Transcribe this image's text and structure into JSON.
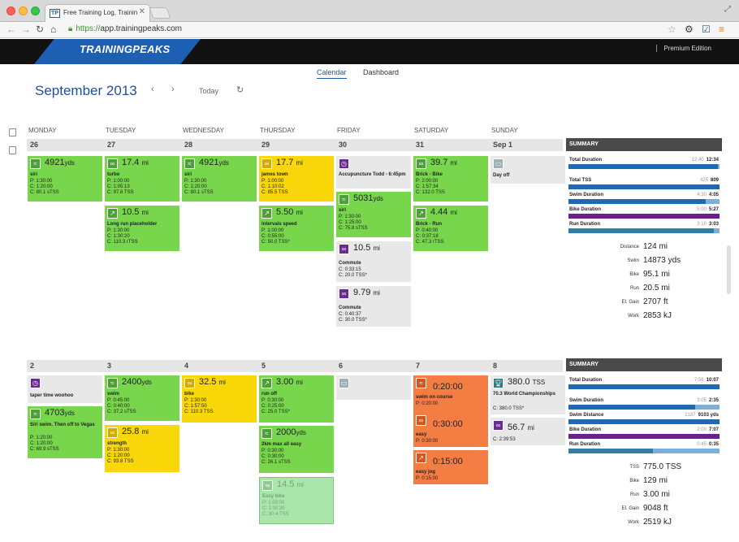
{
  "browser": {
    "tab_title": "Free Training Log, Trainin",
    "tab_favicon": "TP",
    "url_scheme": "https://",
    "url_host": "app.trainingpeaks.com"
  },
  "header": {
    "logo": "TRAININGPEAKS",
    "edition": "Premium Edition",
    "tabs": [
      "Calendar",
      "Dashboard"
    ]
  },
  "calendar": {
    "month": "September",
    "year": "2013",
    "prev": "‹",
    "next": "›",
    "today": "Today",
    "day_names": [
      "MONDAY",
      "TUESDAY",
      "WEDNESDAY",
      "THURSDAY",
      "FRIDAY",
      "SATURDAY",
      "SUNDAY"
    ]
  },
  "week1": {
    "dates": [
      "26",
      "27",
      "28",
      "29",
      "30",
      "31",
      "Sep 1"
    ],
    "summary": {
      "title": "SUMMARY",
      "bars": [
        {
          "label": "Total Duration",
          "planned": "12:40",
          "completed": "12:34",
          "fill": 0.99
        },
        {
          "label": "Total TSS",
          "planned": "425",
          "completed": "809",
          "fill": 1.0
        },
        {
          "label": "Swim Duration",
          "planned": "4:30",
          "completed": "4:05",
          "fill": 0.91
        },
        {
          "label": "Bike Duration",
          "planned": "5:00",
          "completed": "5:27",
          "fill": 1.0
        },
        {
          "label": "Run Duration",
          "planned": "3:10",
          "completed": "3:03",
          "fill": 0.96
        }
      ],
      "totals": [
        {
          "label": "Distance",
          "value": "124",
          "unit": "mi"
        },
        {
          "label": "Swim",
          "value": "14873",
          "unit": "yds"
        },
        {
          "label": "Bike",
          "value": "95.1",
          "unit": "mi"
        },
        {
          "label": "Run",
          "value": "20.5",
          "unit": "mi"
        },
        {
          "label": "El. Gain",
          "value": "2707",
          "unit": "ft"
        },
        {
          "label": "Work",
          "value": "2853",
          "unit": "kJ"
        }
      ]
    }
  },
  "week2": {
    "dates": [
      "2",
      "3",
      "4",
      "5",
      "6",
      "7",
      "8"
    ],
    "summary": {
      "title": "SUMMARY",
      "bars": [
        {
          "label": "Total Duration",
          "planned": "7:56",
          "completed": "10:07",
          "fill": 1.0
        },
        {
          "label": "Swim Duration",
          "planned": "3:05",
          "completed": "2:35",
          "fill": 0.84
        },
        {
          "label": "Swim Distance",
          "planned": "2187",
          "completed": "9103 yds",
          "fill": 1.0
        },
        {
          "label": "Bike Duration",
          "planned": "2:00",
          "completed": "7:07",
          "fill": 1.0
        },
        {
          "label": "Run Duration",
          "planned": "0:45",
          "completed": "0:35",
          "fill": 0.56
        }
      ],
      "totals": [
        {
          "label": "TSS",
          "value": "775.0",
          "unit": "TSS"
        },
        {
          "label": "Bike",
          "value": "129",
          "unit": "mi"
        },
        {
          "label": "Run",
          "value": "3.00",
          "unit": "mi"
        },
        {
          "label": "El. Gain",
          "value": "9048",
          "unit": "ft"
        },
        {
          "label": "Work",
          "value": "2519",
          "unit": "kJ"
        }
      ]
    }
  },
  "cards": {
    "w1mon": {
      "value": "4921",
      "unit": "yds",
      "title": "siri",
      "p": "P: 1:30:00",
      "c": "C: 1:20:00",
      "t": "C: 80.1 sTSS"
    },
    "w1tue1": {
      "value": "17.4",
      "unit": "mi",
      "title": "turbo",
      "p": "P: 1:00:00",
      "c": "C: 1:05:13",
      "t": "C: 97.8 TSS"
    },
    "w1tue2": {
      "value": "10.5",
      "unit": "mi",
      "title": "Long run placeholder",
      "p": "P: 1:30:00",
      "c": "C: 1:30:20",
      "t": "C: 110.3 rTSS"
    },
    "w1wed": {
      "value": "4921",
      "unit": "yds",
      "title": "siri",
      "p": "P: 1:30:00",
      "c": "C: 1:20:00",
      "t": "C: 80.1 sTSS"
    },
    "w1thu1": {
      "value": "17.7",
      "unit": "mi",
      "title": "james town",
      "p": "P: 1:00:00",
      "c": "C: 1:10:02",
      "t": "C: 85.5 TSS"
    },
    "w1thu2": {
      "value": "5.50",
      "unit": "mi",
      "title": "intervals speed",
      "p": "P: 1:00:00",
      "c": "C: 0:55:00",
      "t": "C: 50.0 TSS*"
    },
    "w1fri1": {
      "title": "Accupuncture Todd - 6:45pm"
    },
    "w1fri2": {
      "value": "5031",
      "unit": "yds",
      "title": "siri",
      "p": "P: 1:30:00",
      "c": "C: 1:25:00",
      "t": "C: 75.8 sTSS"
    },
    "w1fri3": {
      "value": "10.5",
      "unit": "mi",
      "title": "Commute",
      "c": "C: 0:33:15",
      "t": "C: 20.0 TSS*"
    },
    "w1fri4": {
      "value": "9.79",
      "unit": "mi",
      "title": "Commute",
      "c": "C: 0:40:37",
      "t": "C: 30.0 TSS*"
    },
    "w1sat1": {
      "value": "39.7",
      "unit": "mi",
      "title": "Brick - Bike",
      "p": "P: 2:00:00",
      "c": "C: 1:57:34",
      "t": "C: 132.0 TSS"
    },
    "w1sat2": {
      "value": "4.44",
      "unit": "mi",
      "title": "Brick - Run",
      "p": "P: 0:40:00",
      "c": "C: 0:37:18",
      "t": "C: 47.3 rTSS"
    },
    "w1sun": {
      "title": "Day off"
    },
    "w2mon1": {
      "title": "taper time woohoo"
    },
    "w2mon2": {
      "value": "4703",
      "unit": "yds",
      "title": "Siri swim. Then off to Vegas",
      "p": "P: 1:20:00",
      "c": "C: 1:20:00",
      "t": "C: 69.9 sTSS"
    },
    "w2tue1": {
      "value": "2400",
      "unit": "yds",
      "title": "swim",
      "p": "P: 0:45:00",
      "c": "C: 0:40:00",
      "t": "C: 37.2 sTSS"
    },
    "w2tue2": {
      "value": "25.8",
      "unit": "mi",
      "title": "strength",
      "p": "P: 1:30:00",
      "c": "C: 1:20:00",
      "t": "C: 93.8 TSS"
    },
    "w2wed": {
      "value": "32.5",
      "unit": "mi",
      "title": "bike",
      "p": "P: 1:30:00",
      "c": "C: 1:57:50",
      "t": "C: 110.3 TSS"
    },
    "w2thu1": {
      "value": "3.00",
      "unit": "mi",
      "title": "run off",
      "p": "P: 0:30:00",
      "c": "C: 0:25:00",
      "t": "C: 25.0 TSS*"
    },
    "w2thu2": {
      "value": "2000",
      "unit": "yds",
      "title": "2km max all easy",
      "p": "P: 0:30:00",
      "c": "C: 0:30:00",
      "t": "C: 26.1 sTSS"
    },
    "w2thu3": {
      "value": "14.5",
      "unit": "mi",
      "title": "Easy bike",
      "p": "P: 1:00:00",
      "c": "C: 1:00:30",
      "t": "C: 30.4 TSS"
    },
    "w2sat1": {
      "value": "0:20:00",
      "unit": "",
      "title": "swim on course",
      "p": "P: 0:20:00"
    },
    "w2sat2": {
      "value": "0:30:00",
      "unit": "",
      "title": "easy",
      "p": "P: 0:30:00"
    },
    "w2sat3": {
      "value": "0:15:00",
      "unit": "",
      "title": "easy jog",
      "p": "P: 0:15:00"
    },
    "w2sun1": {
      "value": "380.0",
      "unit": "TSS",
      "title": "70.3 World Championships",
      "t": "C: 380.0 TSS*"
    },
    "w2sun2": {
      "value": "56.7",
      "unit": "mi",
      "c": "C: 2:39:53"
    }
  },
  "colors": {
    "accent": "#1f5aa8",
    "green": "#77d64c",
    "yellow": "#f9d709",
    "orange": "#f47d43"
  }
}
